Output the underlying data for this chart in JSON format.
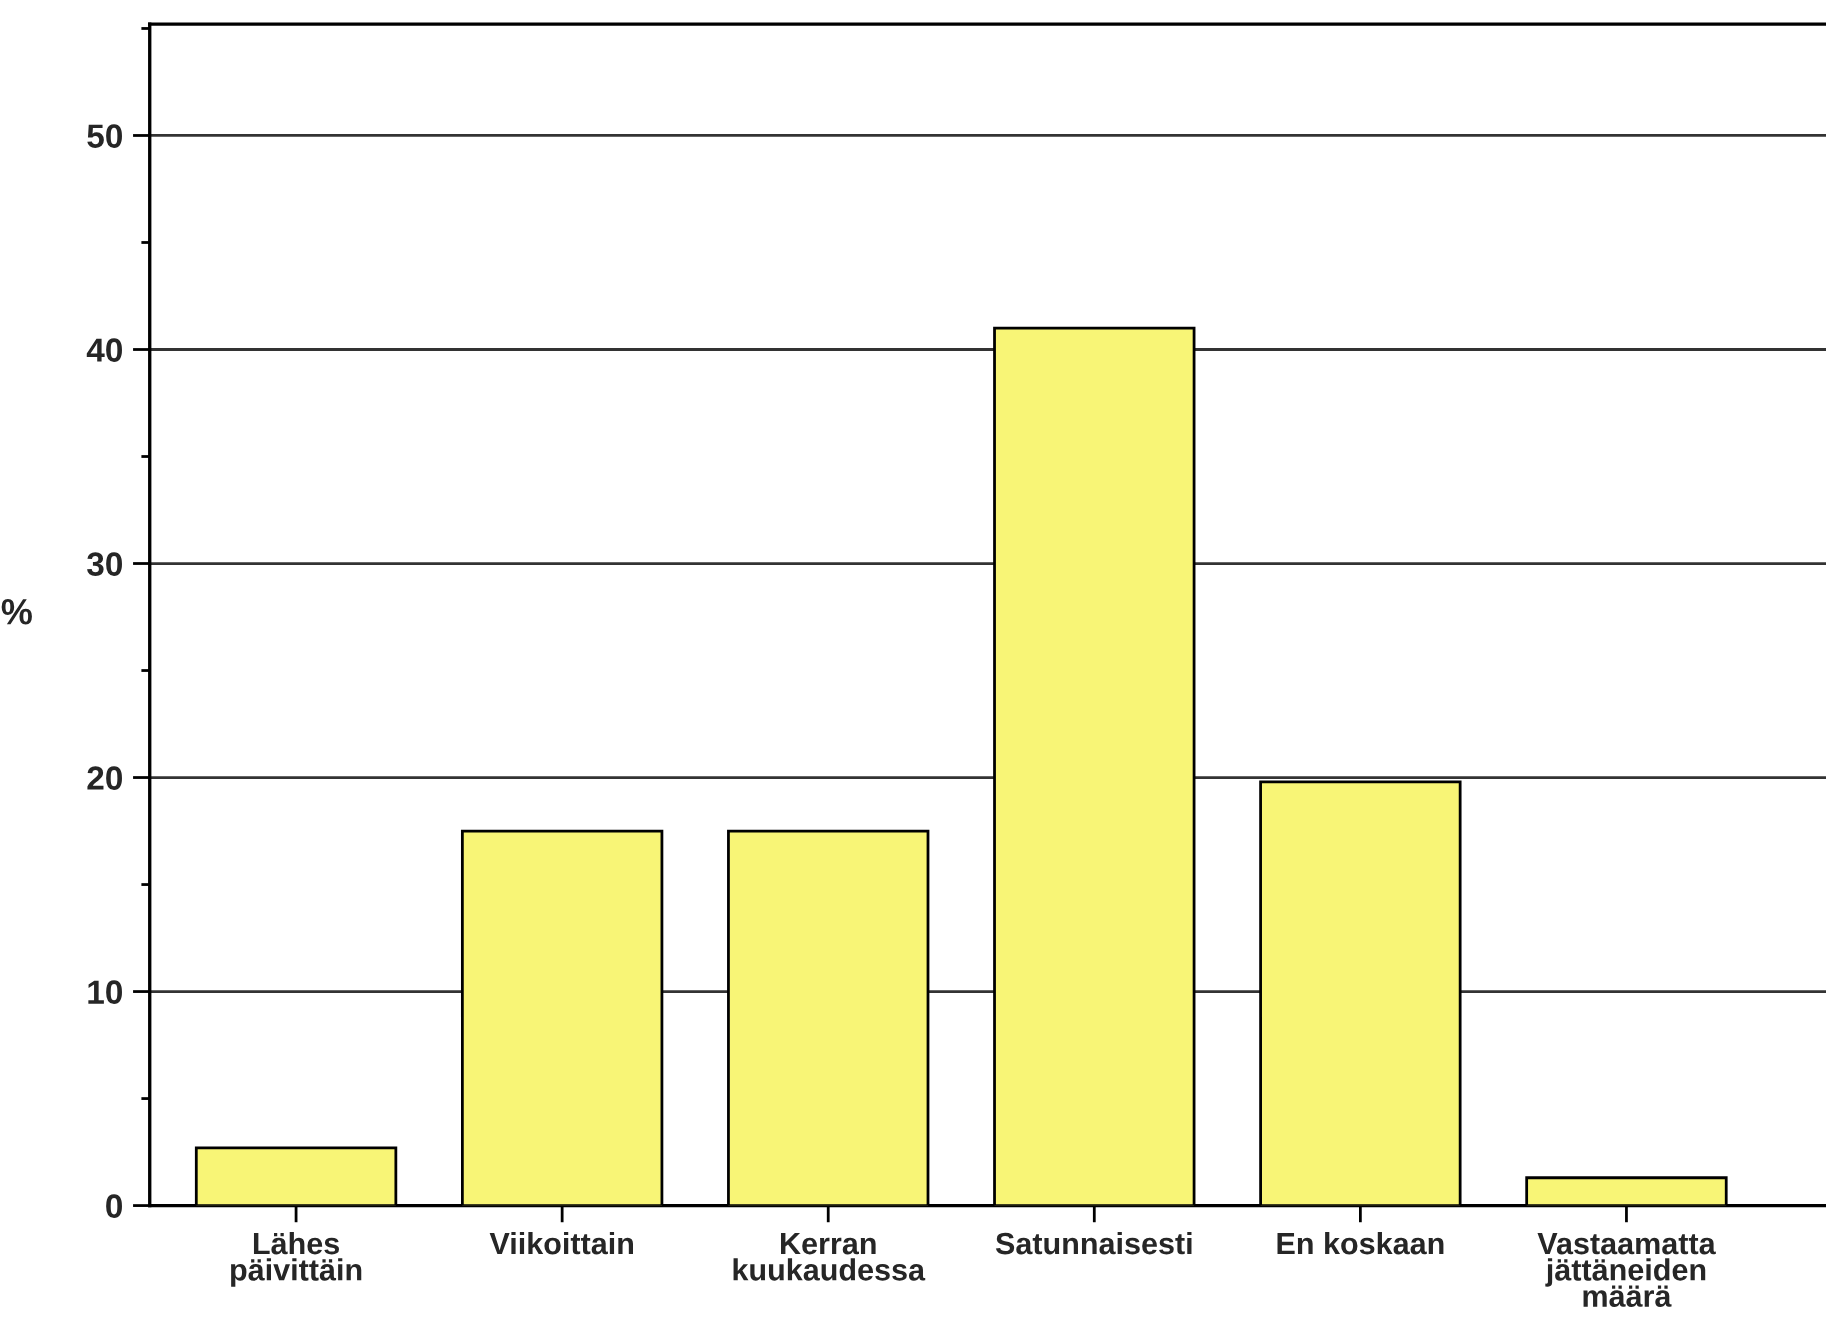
{
  "chart_data": {
    "type": "bar",
    "ylabel": "%",
    "categories": [
      "Lähes\npäivittäin",
      "Viikoittain",
      "Kerran\nkuukaudessa",
      "Satunnaisesti",
      "En koskaan",
      "Vastaamatta\njättäneiden\nmäärä"
    ],
    "values": [
      2.7,
      17.5,
      17.5,
      41.0,
      19.8,
      1.3
    ],
    "color": "#f8f576",
    "ylim": [
      0,
      55.2
    ],
    "yticks": [
      0,
      {
        "value": 5,
        "label": null
      },
      10,
      {
        "value": 15,
        "label": null
      },
      20,
      {
        "value": 25,
        "label": null
      },
      30,
      {
        "value": 35,
        "label": null
      },
      40,
      {
        "value": 45,
        "label": null
      },
      50,
      {
        "value": 55,
        "label": null
      }
    ],
    "grid": "y"
  }
}
